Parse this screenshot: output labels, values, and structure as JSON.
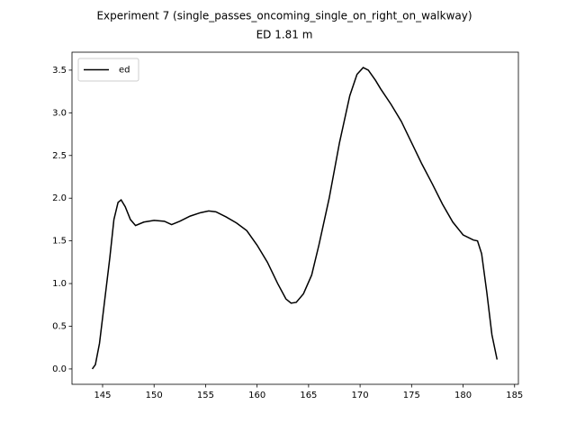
{
  "chart_data": {
    "type": "line",
    "title": "Experiment 7 (single_passes_oncoming_single_on_right_on_walkway)",
    "subtitle": "ED 1.81 m",
    "x": [
      144.0,
      144.3,
      144.7,
      145.2,
      145.7,
      146.1,
      146.5,
      146.8,
      147.2,
      147.7,
      148.2,
      149,
      150,
      151,
      151.7,
      152.5,
      153.5,
      154.5,
      155.3,
      156,
      157,
      158,
      159,
      160,
      161,
      162,
      162.8,
      163.3,
      163.8,
      164.5,
      165.3,
      166,
      167,
      168,
      169,
      169.7,
      170.3,
      170.8,
      171.5,
      172,
      173,
      174,
      175,
      176,
      177,
      178,
      179,
      180,
      181,
      181.4,
      181.8,
      182.3,
      182.8,
      183.3
    ],
    "series": [
      {
        "name": "ed",
        "color": "#000000",
        "values": [
          0.0,
          0.05,
          0.3,
          0.8,
          1.3,
          1.75,
          1.95,
          1.98,
          1.9,
          1.75,
          1.68,
          1.72,
          1.74,
          1.73,
          1.69,
          1.73,
          1.79,
          1.83,
          1.85,
          1.84,
          1.78,
          1.71,
          1.62,
          1.45,
          1.25,
          1.0,
          0.82,
          0.77,
          0.78,
          0.88,
          1.1,
          1.45,
          2.0,
          2.65,
          3.2,
          3.45,
          3.53,
          3.5,
          3.38,
          3.28,
          3.1,
          2.9,
          2.65,
          2.4,
          2.17,
          1.93,
          1.72,
          1.57,
          1.51,
          1.5,
          1.35,
          0.9,
          0.4,
          0.11
        ]
      }
    ],
    "xlim": [
      142.03,
      185.37
    ],
    "ylim": [
      -0.18,
      3.71
    ],
    "xticks": [
      145,
      150,
      155,
      160,
      165,
      170,
      175,
      180,
      185
    ],
    "yticks": [
      {
        "value": 0,
        "label": "0.0"
      },
      0.5,
      {
        "value": 1,
        "label": "1.0"
      },
      1.5,
      {
        "value": 2,
        "label": "2.0"
      },
      2.5,
      {
        "value": 3,
        "label": "3.0"
      },
      3.5
    ],
    "legend": "upper left"
  }
}
